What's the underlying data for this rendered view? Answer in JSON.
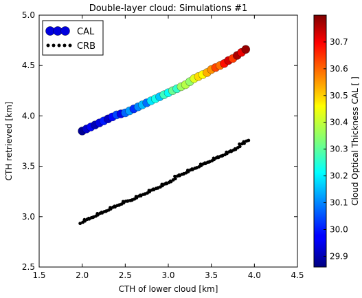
{
  "chart_data": {
    "type": "scatter",
    "title": "Double-layer cloud: Simulations #1",
    "xlabel": "CTH of lower cloud [km]",
    "ylabel": "CTH retrieved [km]",
    "xlim": [
      1.5,
      4.5
    ],
    "ylim": [
      2.5,
      5.0
    ],
    "xticks": [
      "1.5",
      "2.0",
      "2.5",
      "3.0",
      "3.5",
      "4.0",
      "4.5"
    ],
    "yticks": [
      "2.5",
      "3.0",
      "3.5",
      "4.0",
      "4.5",
      "5.0"
    ],
    "grid": false,
    "legend": {
      "position": "top-left",
      "entries": [
        "CAL",
        "CRB"
      ]
    },
    "colorbar": {
      "label": "Cloud Optical Thickness CAL [ ]",
      "range": [
        29.86,
        30.8
      ],
      "ticks": [
        "29.9",
        "30.0",
        "30.1",
        "30.2",
        "30.3",
        "30.4",
        "30.5",
        "30.6",
        "30.7"
      ],
      "colormap": "jet"
    },
    "series": [
      {
        "name": "CAL",
        "marker": "circle",
        "x": [
          2.0,
          2.05,
          2.1,
          2.15,
          2.2,
          2.25,
          2.3,
          2.35,
          2.4,
          2.45,
          2.5,
          2.55,
          2.6,
          2.65,
          2.7,
          2.75,
          2.8,
          2.85,
          2.9,
          2.95,
          3.0,
          3.05,
          3.1,
          3.15,
          3.2,
          3.25,
          3.3,
          3.35,
          3.4,
          3.45,
          3.5,
          3.55,
          3.6,
          3.65,
          3.7,
          3.75,
          3.8,
          3.85,
          3.9
        ],
        "y": [
          3.85,
          3.87,
          3.89,
          3.91,
          3.93,
          3.95,
          3.97,
          3.99,
          4.01,
          4.02,
          4.03,
          4.05,
          4.07,
          4.09,
          4.11,
          4.13,
          4.15,
          4.17,
          4.19,
          4.21,
          4.23,
          4.25,
          4.27,
          4.29,
          4.31,
          4.34,
          4.37,
          4.39,
          4.41,
          4.43,
          4.46,
          4.48,
          4.5,
          4.52,
          4.55,
          4.57,
          4.6,
          4.63,
          4.66
        ],
        "c": [
          29.88,
          29.93,
          29.97,
          29.91,
          29.95,
          30.0,
          29.92,
          29.98,
          30.04,
          29.96,
          30.07,
          30.12,
          30.02,
          30.1,
          30.15,
          30.08,
          30.19,
          30.23,
          30.16,
          30.27,
          30.22,
          30.31,
          30.26,
          30.36,
          30.38,
          30.35,
          30.42,
          30.48,
          30.45,
          30.52,
          30.55,
          30.62,
          30.58,
          30.67,
          30.72,
          30.63,
          30.76,
          30.7,
          30.78
        ]
      },
      {
        "name": "CRB",
        "marker": "dot",
        "color": "#000000",
        "x": [
          2.0,
          2.05,
          2.1,
          2.15,
          2.2,
          2.25,
          2.3,
          2.35,
          2.4,
          2.45,
          2.5,
          2.55,
          2.6,
          2.65,
          2.7,
          2.75,
          2.8,
          2.85,
          2.9,
          2.95,
          3.0,
          3.05,
          3.1,
          3.15,
          3.2,
          3.25,
          3.3,
          3.35,
          3.4,
          3.45,
          3.5,
          3.55,
          3.6,
          3.65,
          3.7,
          3.75,
          3.8,
          3.85,
          3.9
        ],
        "y": [
          2.95,
          2.97,
          2.99,
          3.01,
          3.03,
          3.05,
          3.07,
          3.09,
          3.11,
          3.13,
          3.15,
          3.16,
          3.18,
          3.2,
          3.22,
          3.24,
          3.26,
          3.28,
          3.3,
          3.32,
          3.34,
          3.37,
          3.4,
          3.42,
          3.44,
          3.46,
          3.48,
          3.5,
          3.52,
          3.54,
          3.56,
          3.58,
          3.6,
          3.62,
          3.64,
          3.66,
          3.69,
          3.72,
          3.75
        ]
      }
    ]
  }
}
